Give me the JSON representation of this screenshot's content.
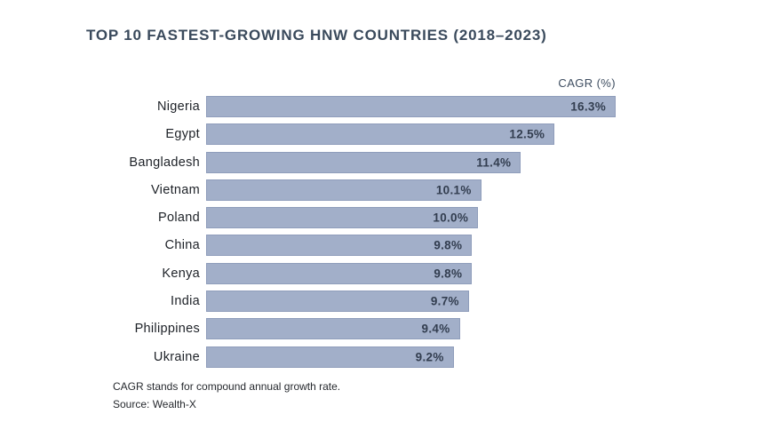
{
  "chart_data": {
    "type": "bar",
    "orientation": "horizontal",
    "title": "TOP 10 FASTEST-GROWING HNW COUNTRIES (2018–2023)",
    "value_axis_label": "CAGR (%)",
    "categories": [
      "Nigeria",
      "Egypt",
      "Bangladesh",
      "Vietnam",
      "Poland",
      "China",
      "Kenya",
      "India",
      "Philippines",
      "Ukraine"
    ],
    "values": [
      16.3,
      12.5,
      11.4,
      10.1,
      10.0,
      9.8,
      9.8,
      9.7,
      9.4,
      9.2
    ],
    "value_labels": [
      "16.3%",
      "12.5%",
      "11.4%",
      "10.1%",
      "10.0%",
      "9.8%",
      "9.8%",
      "9.7%",
      "9.4%",
      "9.2%"
    ],
    "xlim": [
      1.1,
      14.5
    ],
    "bars_clipped_at_axis_max": true,
    "grid": false,
    "legend": false
  },
  "colors": {
    "bar_fill": "#a2afc9",
    "bar_border": "#8f9dbb",
    "title": "#3a4a5c",
    "value_text": "#333e50",
    "category_text": "#1d2127",
    "footnote_text": "#26292e"
  },
  "footer": {
    "note": "CAGR stands for compound annual growth rate.",
    "source": "Source: Wealth-X"
  }
}
